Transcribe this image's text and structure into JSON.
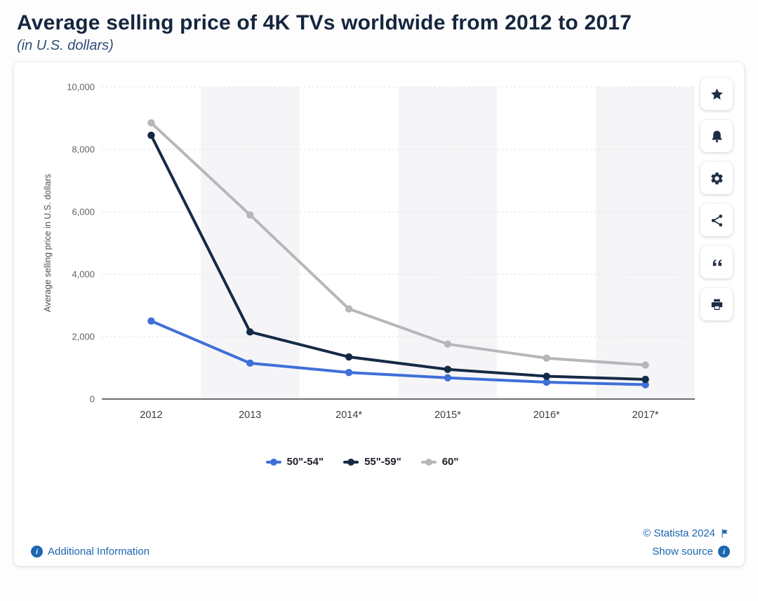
{
  "header": {
    "title": "Average selling price of 4K TVs worldwide from 2012 to 2017",
    "subtitle": "(in U.S. dollars)"
  },
  "chart_data": {
    "type": "line",
    "title": "Average selling price of 4K TVs worldwide from 2012 to 2017",
    "subtitle": "(in U.S. dollars)",
    "xlabel": "",
    "ylabel": "Average selling price in U.S. dollars",
    "categories": [
      "2012",
      "2013",
      "2014*",
      "2015*",
      "2016*",
      "2017*"
    ],
    "series": [
      {
        "name": "50\"-54\"",
        "color": "#3f6fd8",
        "values": [
          2500,
          1150,
          850,
          680,
          540,
          460
        ]
      },
      {
        "name": "55\"-59\"",
        "color": "#152a46",
        "values": [
          8450,
          2150,
          1350,
          950,
          730,
          630
        ]
      },
      {
        "name": "60\"",
        "color": "#b6b7ba",
        "values": [
          8850,
          5900,
          2890,
          1760,
          1310,
          1090
        ]
      }
    ],
    "ylim": [
      0,
      10000
    ],
    "yticks": [
      0,
      2000,
      4000,
      6000,
      8000,
      10000
    ],
    "grid": "dashed-horizontal",
    "legend_position": "bottom",
    "band_fill": "#f5f5f7",
    "gridline_color": "#d9dbe0",
    "axis_color": "#3c4043"
  },
  "toolbar": {
    "buttons": [
      {
        "name": "favorite",
        "icon": "star-icon"
      },
      {
        "name": "alert",
        "icon": "bell-icon"
      },
      {
        "name": "settings",
        "icon": "gear-icon"
      },
      {
        "name": "share",
        "icon": "share-icon"
      },
      {
        "name": "cite",
        "icon": "quote-icon"
      },
      {
        "name": "print",
        "icon": "print-icon"
      }
    ]
  },
  "footer": {
    "additional_info_label": "Additional Information",
    "copyright": "© Statista 2024",
    "show_source_label": "Show source"
  },
  "colors": {
    "link_blue": "#1d66b0",
    "title_navy": "#15263e",
    "icon_navy": "#1e2c45"
  }
}
